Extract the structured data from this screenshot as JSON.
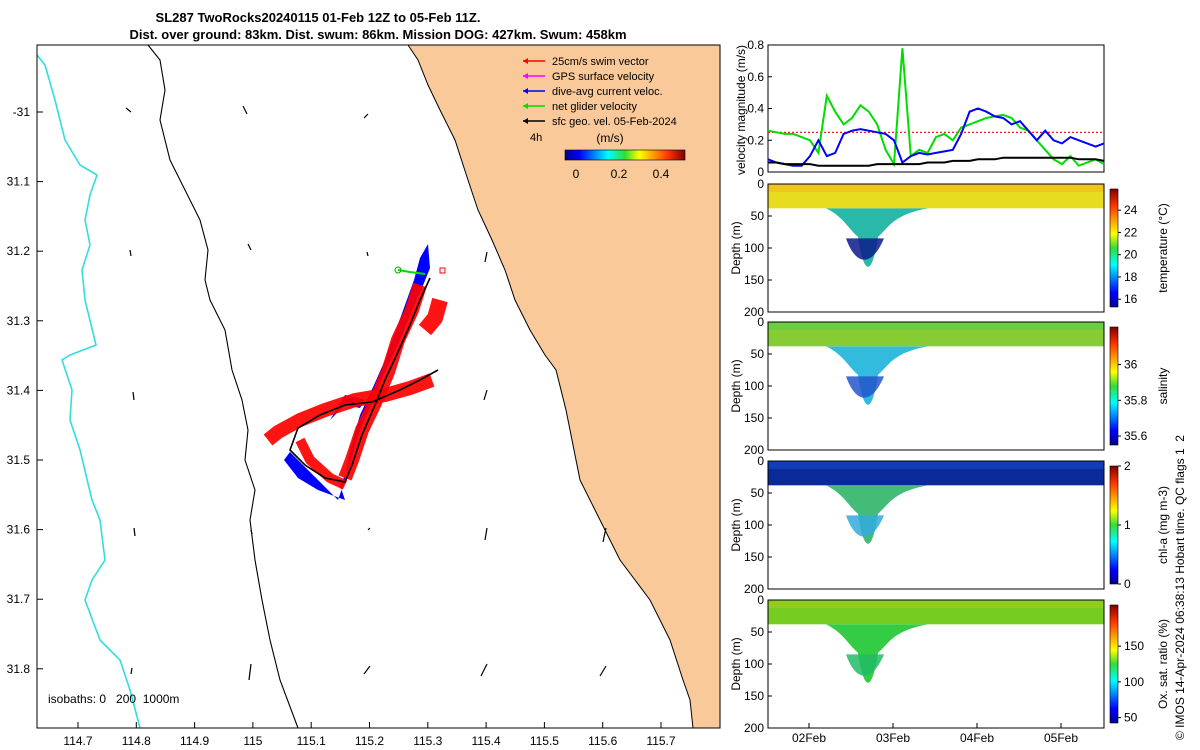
{
  "title": {
    "line1": "SL287 TwoRocks20240115 01-Feb 12Z to 05-Feb 11Z.",
    "line2": "Dist. over ground: 83km. Dist. swum: 86km. Mission DOG: 427km. Swum: 458km"
  },
  "colors": {
    "land": "#f9c99a",
    "isobath_200": "#000000",
    "isobath_1000": "#000000",
    "isobath_0": "#33dddd",
    "swim": "#ff0000",
    "gps": "#ff00ff",
    "current": "#0000ff",
    "net": "#00dd00",
    "geo": "#000000"
  },
  "map": {
    "legend": [
      {
        "label": "25cm/s swim vector",
        "color": "#ff0000"
      },
      {
        "label": "GPS surface velocity",
        "color": "#ff00ff"
      },
      {
        "label": "dive-avg current veloc.",
        "color": "#0000ff"
      },
      {
        "label": "net glider velocity",
        "color": "#00dd00"
      },
      {
        "label": "sfc geo. vel. 05-Feb-2024",
        "color": "#000000"
      }
    ],
    "time_marker": "4h",
    "colorbar_label": "(m/s)",
    "colorbar_ticks": [
      "0",
      "0.2",
      "0.4"
    ],
    "isobath_note": "isobaths: 0   200  1000m",
    "x_ticks": [
      "114.7",
      "114.8",
      "114.9",
      "115",
      "115.1",
      "115.2",
      "115.3",
      "115.4",
      "115.5",
      "115.6",
      "115.7"
    ],
    "y_ticks": [
      "-31",
      "31.1",
      "31.2",
      "31.3",
      "31.4",
      "31.5",
      "31.6",
      "31.7",
      "31.8"
    ]
  },
  "chart_data": [
    {
      "type": "line",
      "title": "",
      "ylabel": "velocity magnitude (m/s)",
      "ylim": [
        0,
        0.8
      ],
      "yticks": [
        "0",
        "0.2",
        "0.4",
        "0.6",
        "0.8"
      ],
      "x": [
        0,
        0.1,
        0.2,
        0.3,
        0.4,
        0.5,
        0.6,
        0.7,
        0.8,
        0.9,
        1.0,
        1.1,
        1.2,
        1.3,
        1.4,
        1.5,
        1.6,
        1.7,
        1.8,
        1.9,
        2.0,
        2.1,
        2.2,
        2.3,
        2.4,
        2.5,
        2.6,
        2.7,
        2.8,
        2.9,
        3.0,
        3.1,
        3.2,
        3.3,
        3.4,
        3.5,
        3.6,
        3.7,
        3.8,
        3.9,
        4.0
      ],
      "series": [
        {
          "name": "swim speed",
          "color": "#ff0000",
          "values": [
            0.25,
            0.25,
            0.25,
            0.25,
            0.25,
            0.25,
            0.25,
            0.25,
            0.25,
            0.25,
            0.25,
            0.25,
            0.25,
            0.25,
            0.25,
            0.25,
            0.25,
            0.25,
            0.25,
            0.25,
            0.25,
            0.25,
            0.25,
            0.25,
            0.25,
            0.25,
            0.25,
            0.25,
            0.25,
            0.25,
            0.25,
            0.25,
            0.25,
            0.25,
            0.25,
            0.25,
            0.25,
            0.25,
            0.25,
            0.25,
            0.25
          ]
        },
        {
          "name": "net glider velocity",
          "color": "#00dd00",
          "values": [
            0.26,
            0.25,
            0.24,
            0.24,
            0.22,
            0.2,
            0.12,
            0.48,
            0.38,
            0.3,
            0.34,
            0.42,
            0.38,
            0.3,
            0.14,
            0.05,
            0.78,
            0.1,
            0.14,
            0.12,
            0.22,
            0.24,
            0.2,
            0.28,
            0.3,
            0.32,
            0.34,
            0.35,
            0.36,
            0.34,
            0.28,
            0.26,
            0.2,
            0.14,
            0.08,
            0.05,
            0.1,
            0.04,
            0.06,
            0.08,
            0.05
          ]
        },
        {
          "name": "dive-avg current veloc.",
          "color": "#0000ff",
          "values": [
            0.08,
            0.06,
            0.05,
            0.04,
            0.04,
            0.1,
            0.2,
            0.1,
            0.12,
            0.24,
            0.26,
            0.27,
            0.26,
            0.25,
            0.24,
            0.2,
            0.06,
            0.1,
            0.12,
            0.11,
            0.12,
            0.13,
            0.14,
            0.24,
            0.38,
            0.4,
            0.38,
            0.35,
            0.34,
            0.3,
            0.32,
            0.26,
            0.2,
            0.26,
            0.2,
            0.18,
            0.22,
            0.2,
            0.18,
            0.16,
            0.18
          ]
        },
        {
          "name": "sfc geo. vel.",
          "color": "#000000",
          "values": [
            0.06,
            0.06,
            0.05,
            0.05,
            0.05,
            0.05,
            0.04,
            0.04,
            0.04,
            0.04,
            0.04,
            0.04,
            0.04,
            0.05,
            0.05,
            0.05,
            0.05,
            0.05,
            0.05,
            0.06,
            0.06,
            0.06,
            0.07,
            0.07,
            0.07,
            0.08,
            0.08,
            0.08,
            0.09,
            0.09,
            0.09,
            0.09,
            0.09,
            0.09,
            0.09,
            0.09,
            0.09,
            0.08,
            0.08,
            0.08,
            0.07
          ]
        }
      ]
    },
    {
      "type": "heatmap",
      "ylabel": "Depth (m)",
      "ylim": [
        0,
        200
      ],
      "yticks": [
        "0",
        "50",
        "100",
        "150",
        "200"
      ],
      "colorbar_label": "temperature (°C)",
      "colorbar_ticks": [
        "16",
        "18",
        "20",
        "22",
        "24"
      ],
      "surface_value": 22.5,
      "deep_value": 15.8,
      "trough_depth_max": 145
    },
    {
      "type": "heatmap",
      "ylabel": "Depth (m)",
      "ylim": [
        0,
        200
      ],
      "yticks": [
        "0",
        "50",
        "100",
        "150",
        "200"
      ],
      "colorbar_label": "salinity",
      "colorbar_ticks": [
        "35.6",
        "35.8",
        "36"
      ],
      "surface_value": 35.9,
      "deep_value": 35.7,
      "trough_depth_max": 145
    },
    {
      "type": "heatmap",
      "ylabel": "Depth (m)",
      "ylim": [
        0,
        200
      ],
      "yticks": [
        "0",
        "50",
        "100",
        "150",
        "200"
      ],
      "colorbar_label": "chl-a (mg m-3)",
      "colorbar_ticks": [
        "0",
        "1",
        "2"
      ],
      "surface_value": 0.1,
      "deep_value": 0.5,
      "trough_depth_max": 145
    },
    {
      "type": "heatmap",
      "ylabel": "Depth (m)",
      "ylim": [
        0,
        200
      ],
      "yticks": [
        "0",
        "50",
        "100",
        "150",
        "200"
      ],
      "colorbar_label": "Ox. sat. ratio (%)",
      "colorbar_ticks": [
        "50",
        "100",
        "150"
      ],
      "surface_value": 110,
      "deep_value": 100,
      "trough_depth_max": 145
    }
  ],
  "time_axis": {
    "ticks": [
      "02Feb",
      "03Feb",
      "04Feb",
      "05Feb"
    ]
  },
  "side_note": "© IMOS 14-Apr-2024 06:38:13 Hobart time. QC flags 1  2"
}
